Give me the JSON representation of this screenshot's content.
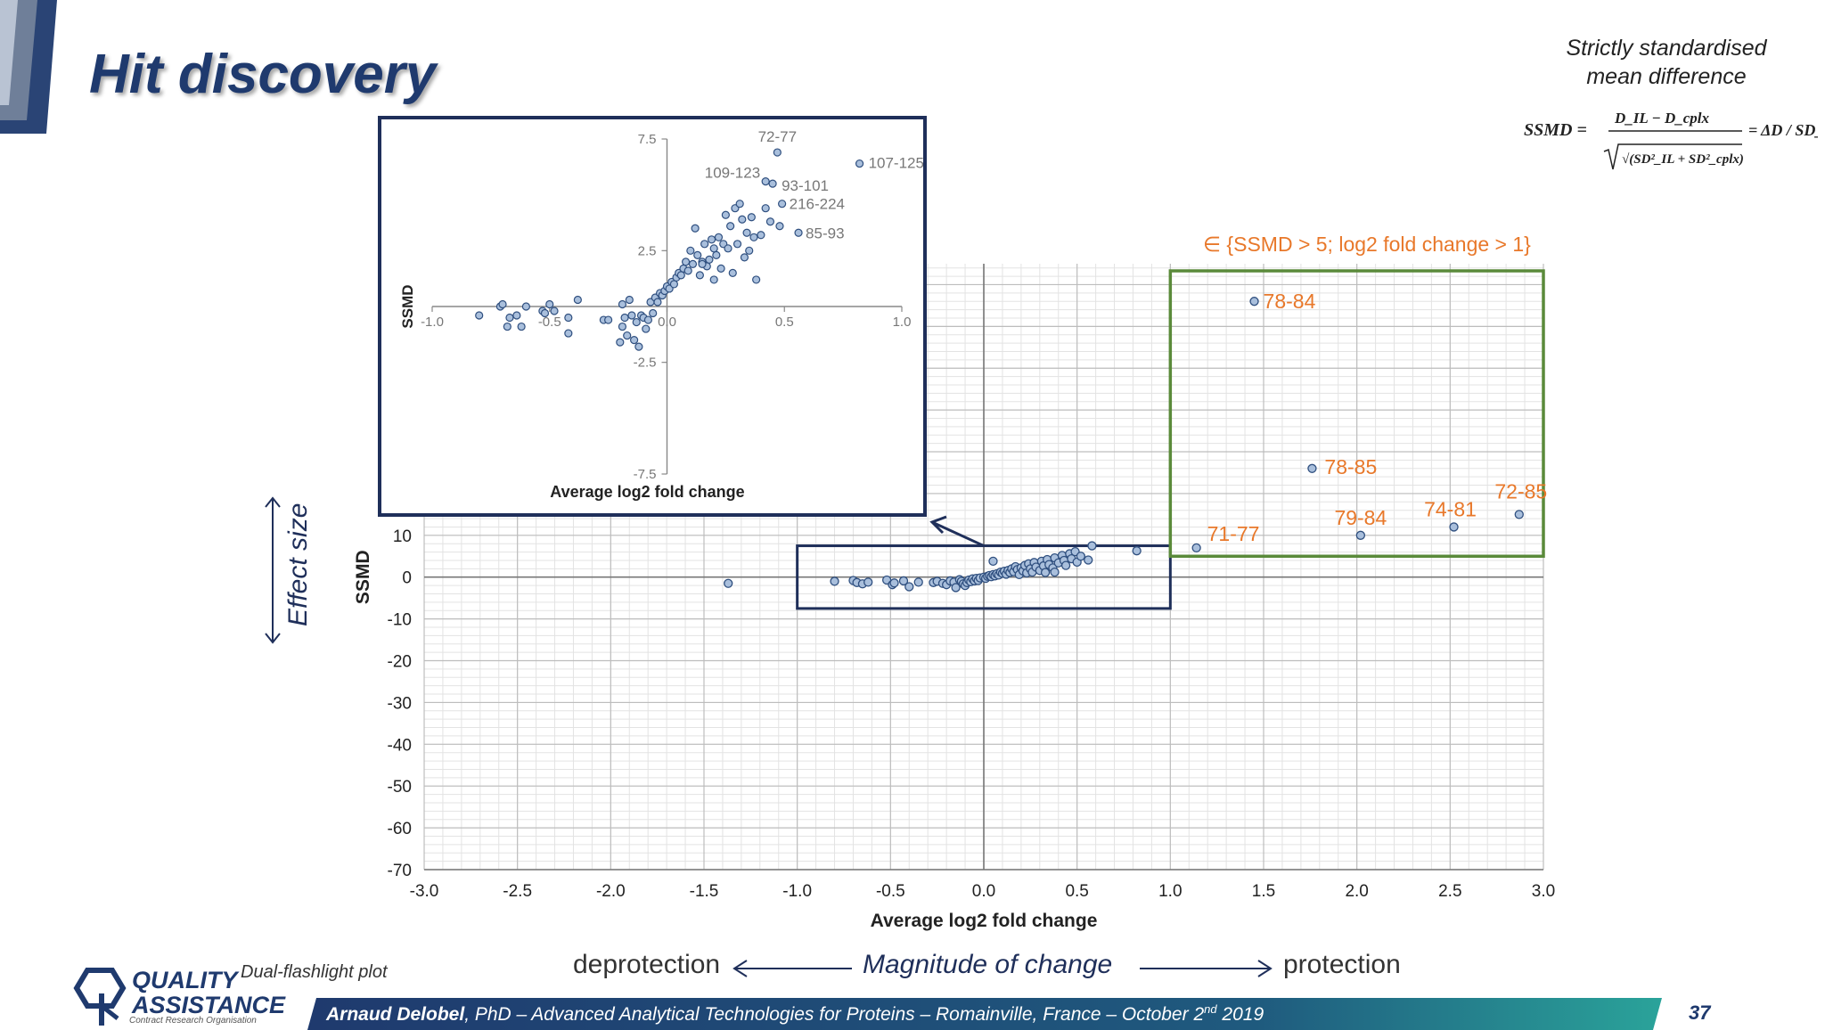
{
  "slide": {
    "title": "Hit discovery",
    "ssmd_definition": [
      "Strictly standardised",
      "mean difference"
    ],
    "formula": {
      "lhs": "SSMD =",
      "numerator": "D_IL − D_cplx",
      "denominator": "√(SD²_IL + SD²_cplx)",
      "rhs": "= ΔD / SD_P"
    },
    "effect_size_label": "Effect size",
    "magnitude_label": "Magnitude of change",
    "deprotection_label": "deprotection",
    "protection_label": "protection",
    "plot_type_note": "Dual-flashlight plot",
    "footer": {
      "author": "Arnaud Delobel",
      "text": ", PhD – Advanced Analytical Technologies for Proteins – Romainville, France – October 2",
      "sup": "nd",
      "year": " 2019"
    },
    "page_number": "37",
    "logo": {
      "line1": "QUALITY",
      "line2": "ASSISTANCE",
      "tagline": "Contract Research Organisation"
    },
    "colors": {
      "navy": "#1f3a6e",
      "orange": "#e8782a",
      "green": "#5a8a3a",
      "point_fill": "#a9bfdc",
      "point_stroke": "#2f4f7f"
    }
  },
  "chart_data": [
    {
      "type": "scatter",
      "id": "main",
      "xlabel": "Average log2 fold change",
      "ylabel": "SSMD",
      "xlim": [
        -3.0,
        3.0
      ],
      "ylim": [
        -70,
        10
      ],
      "xticks": [
        "-3.0",
        "-2.5",
        "-2.0",
        "-1.5",
        "-1.0",
        "-0.5",
        "0.0",
        "0.5",
        "1.0",
        "1.5",
        "2.0",
        "2.5",
        "3.0"
      ],
      "yticks": [
        "10",
        "0",
        "-10",
        "-20",
        "-30",
        "-40",
        "-50",
        "-60",
        "-70"
      ],
      "grid": true,
      "hit_criterion": "∈ {SSMD > 5; log2 fold change > 1}",
      "labeled_points": [
        {
          "label": "78-84",
          "x": 1.45,
          "y": 66
        },
        {
          "label": "78-85",
          "x": 1.76,
          "y": 26
        },
        {
          "label": "79-84",
          "x": 2.02,
          "y": 10
        },
        {
          "label": "74-81",
          "x": 2.52,
          "y": 12
        },
        {
          "label": "72-85",
          "x": 2.87,
          "y": 15
        },
        {
          "label": "71-77",
          "x": 1.14,
          "y": 7
        }
      ],
      "points": [
        [
          -1.37,
          -1.5
        ],
        [
          -0.8,
          -1.0
        ],
        [
          -0.7,
          -0.8
        ],
        [
          -0.68,
          -1.3
        ],
        [
          -0.65,
          -1.6
        ],
        [
          -0.62,
          -1.2
        ],
        [
          -0.52,
          -0.7
        ],
        [
          -0.49,
          -1.8
        ],
        [
          -0.48,
          -1.4
        ],
        [
          -0.43,
          -0.9
        ],
        [
          -0.35,
          -1.2
        ],
        [
          -0.27,
          -1.3
        ],
        [
          -0.25,
          -1.0
        ],
        [
          -0.22,
          -1.5
        ],
        [
          -0.2,
          -1.8
        ],
        [
          -0.18,
          -0.9
        ],
        [
          -0.16,
          -1.2
        ],
        [
          -0.15,
          -2.5
        ],
        [
          -0.13,
          -0.6
        ],
        [
          -0.12,
          -1.0
        ],
        [
          -0.11,
          -1.6
        ],
        [
          -0.1,
          -2.0
        ],
        [
          -0.09,
          -1.3
        ],
        [
          -0.08,
          -0.7
        ],
        [
          -0.07,
          -1.1
        ],
        [
          -0.06,
          -0.4
        ],
        [
          -0.05,
          -0.9
        ],
        [
          -0.04,
          -0.3
        ],
        [
          -0.03,
          -0.8
        ],
        [
          -0.02,
          -0.2
        ],
        [
          0.0,
          0.0
        ],
        [
          0.01,
          -0.3
        ],
        [
          0.02,
          0.2
        ],
        [
          0.03,
          0.4
        ],
        [
          0.04,
          0.1
        ],
        [
          0.05,
          0.6
        ],
        [
          0.06,
          0.3
        ],
        [
          0.07,
          0.8
        ],
        [
          0.08,
          0.5
        ],
        [
          0.09,
          1.2
        ],
        [
          0.1,
          0.9
        ],
        [
          0.11,
          1.4
        ],
        [
          0.12,
          0.7
        ],
        [
          0.13,
          1.6
        ],
        [
          0.14,
          1.1
        ],
        [
          0.15,
          2.0
        ],
        [
          0.16,
          1.3
        ],
        [
          0.17,
          2.5
        ],
        [
          0.18,
          1.8
        ],
        [
          0.19,
          0.6
        ],
        [
          0.2,
          2.2
        ],
        [
          0.21,
          1.5
        ],
        [
          0.22,
          2.8
        ],
        [
          0.23,
          1.0
        ],
        [
          0.24,
          3.2
        ],
        [
          0.25,
          2.0
        ],
        [
          0.26,
          1.2
        ],
        [
          0.27,
          3.5
        ],
        [
          0.28,
          2.4
        ],
        [
          0.3,
          1.6
        ],
        [
          0.31,
          3.8
        ],
        [
          0.32,
          2.7
        ],
        [
          0.33,
          1.1
        ],
        [
          0.34,
          4.2
        ],
        [
          0.35,
          3.0
        ],
        [
          0.37,
          2.2
        ],
        [
          0.38,
          4.6
        ],
        [
          0.4,
          3.4
        ],
        [
          0.42,
          5.2
        ],
        [
          0.43,
          4.0
        ],
        [
          0.44,
          2.8
        ],
        [
          0.46,
          5.6
        ],
        [
          0.47,
          4.4
        ],
        [
          0.49,
          6.1
        ],
        [
          0.5,
          3.6
        ],
        [
          0.52,
          5.0
        ],
        [
          0.56,
          4.1
        ],
        [
          0.58,
          7.5
        ],
        [
          0.82,
          6.3
        ],
        [
          0.38,
          1.2
        ],
        [
          0.05,
          3.8
        ],
        [
          -0.4,
          -2.3
        ]
      ]
    },
    {
      "type": "scatter",
      "id": "inset",
      "xlabel": "Average log2 fold change",
      "ylabel": "SSMD",
      "xlim": [
        -1.0,
        1.0
      ],
      "ylim": [
        -7.5,
        7.5
      ],
      "xticks": [
        "-1.0",
        "-0.5",
        "0.0",
        "0.5",
        "1.0"
      ],
      "yticks": [
        "7.5",
        "2.5",
        "-2.5",
        "-7.5"
      ],
      "grid": false,
      "labeled_points": [
        {
          "label": "72-77",
          "x": 0.47,
          "y": 6.9
        },
        {
          "label": "107-125",
          "x": 0.82,
          "y": 6.4
        },
        {
          "label": "109-123",
          "x": 0.42,
          "y": 5.6
        },
        {
          "label": "93-101",
          "x": 0.45,
          "y": 5.5
        },
        {
          "label": "216-224",
          "x": 0.49,
          "y": 4.6
        },
        {
          "label": "85-93",
          "x": 0.56,
          "y": 3.3
        }
      ],
      "points": [
        [
          -0.8,
          -0.4
        ],
        [
          -0.71,
          0.0
        ],
        [
          -0.7,
          0.1
        ],
        [
          -0.68,
          -0.9
        ],
        [
          -0.67,
          -0.5
        ],
        [
          -0.62,
          -0.9
        ],
        [
          -0.64,
          -0.4
        ],
        [
          -0.53,
          -0.2
        ],
        [
          -0.52,
          -0.3
        ],
        [
          -0.5,
          0.1
        ],
        [
          -0.48,
          -0.2
        ],
        [
          -0.42,
          -0.5
        ],
        [
          -0.42,
          -1.2
        ],
        [
          -0.38,
          0.3
        ],
        [
          -0.27,
          -0.6
        ],
        [
          -0.25,
          -0.6
        ],
        [
          -0.2,
          -1.6
        ],
        [
          -0.19,
          0.1
        ],
        [
          -0.19,
          -0.9
        ],
        [
          -0.18,
          -0.5
        ],
        [
          -0.17,
          -1.3
        ],
        [
          -0.16,
          0.3
        ],
        [
          -0.15,
          -0.4
        ],
        [
          -0.14,
          -1.5
        ],
        [
          -0.13,
          -0.7
        ],
        [
          -0.12,
          -1.8
        ],
        [
          -0.11,
          -0.4
        ],
        [
          -0.1,
          -0.5
        ],
        [
          -0.09,
          -1.0
        ],
        [
          -0.08,
          -0.6
        ],
        [
          -0.07,
          0.2
        ],
        [
          -0.06,
          -0.3
        ],
        [
          -0.05,
          0.4
        ],
        [
          -0.04,
          0.2
        ],
        [
          -0.03,
          0.6
        ],
        [
          -0.02,
          0.5
        ],
        [
          -0.01,
          0.7
        ],
        [
          0.0,
          0.9
        ],
        [
          0.01,
          0.8
        ],
        [
          0.02,
          1.1
        ],
        [
          0.03,
          1.0
        ],
        [
          0.04,
          1.3
        ],
        [
          0.05,
          1.5
        ],
        [
          0.06,
          1.4
        ],
        [
          0.07,
          1.7
        ],
        [
          0.08,
          2.0
        ],
        [
          0.09,
          1.6
        ],
        [
          0.1,
          2.5
        ],
        [
          0.11,
          1.9
        ],
        [
          0.12,
          3.5
        ],
        [
          0.13,
          2.3
        ],
        [
          0.14,
          1.4
        ],
        [
          0.15,
          2.0
        ],
        [
          0.16,
          2.8
        ],
        [
          0.17,
          1.8
        ],
        [
          0.18,
          2.1
        ],
        [
          0.19,
          3.0
        ],
        [
          0.2,
          2.6
        ],
        [
          0.21,
          2.3
        ],
        [
          0.22,
          3.1
        ],
        [
          0.23,
          1.7
        ],
        [
          0.24,
          2.8
        ],
        [
          0.25,
          4.1
        ],
        [
          0.26,
          2.6
        ],
        [
          0.27,
          3.6
        ],
        [
          0.28,
          1.5
        ],
        [
          0.29,
          4.4
        ],
        [
          0.3,
          2.8
        ],
        [
          0.31,
          4.6
        ],
        [
          0.32,
          3.9
        ],
        [
          0.33,
          2.2
        ],
        [
          0.34,
          3.3
        ],
        [
          0.35,
          2.5
        ],
        [
          0.36,
          4.0
        ],
        [
          0.37,
          3.1
        ],
        [
          0.38,
          1.2
        ],
        [
          0.4,
          3.2
        ],
        [
          0.42,
          4.4
        ],
        [
          0.44,
          3.8
        ],
        [
          0.48,
          3.6
        ],
        [
          0.15,
          1.9
        ],
        [
          0.2,
          1.2
        ],
        [
          -0.6,
          0.0
        ]
      ]
    }
  ]
}
